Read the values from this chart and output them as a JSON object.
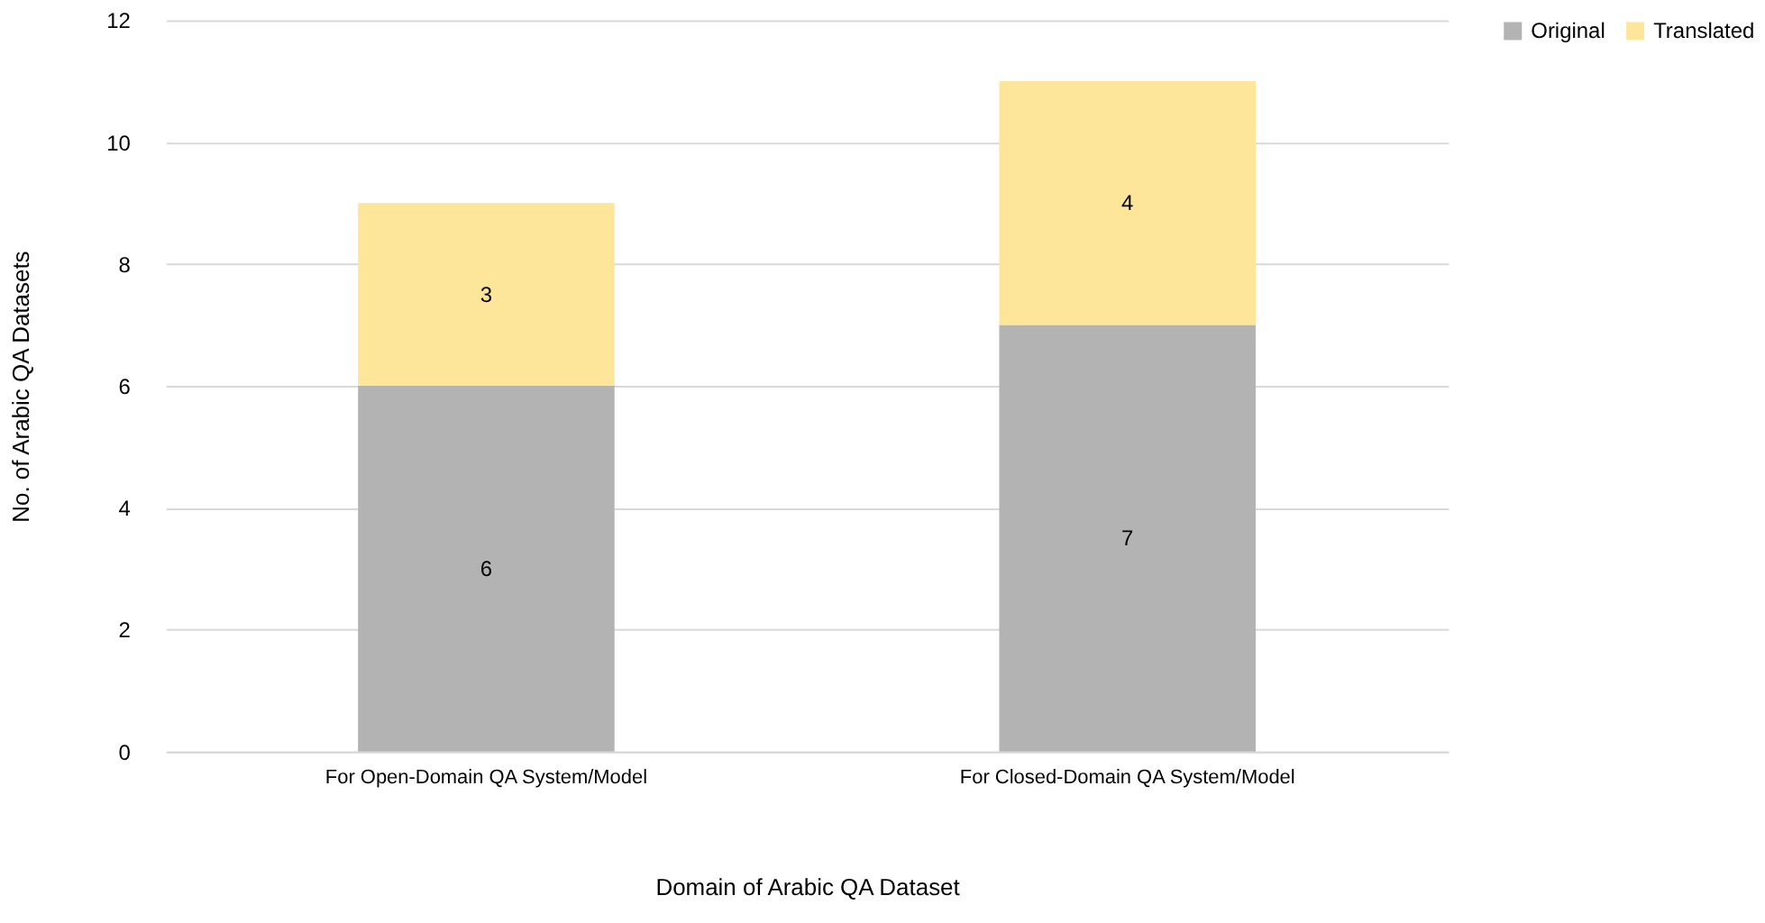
{
  "chart_data": {
    "type": "bar",
    "stacked": true,
    "xlabel": "Domain of Arabic QA Dataset",
    "ylabel": "No. of Arabic QA Datasets",
    "categories": [
      "For Open-Domain QA System/Model",
      "For Closed-Domain QA System/Model"
    ],
    "series": [
      {
        "name": "Original",
        "color": "#b3b3b3",
        "values": [
          6,
          7
        ]
      },
      {
        "name": "Translated",
        "color": "#fde59a",
        "values": [
          3,
          4
        ]
      }
    ],
    "ylim": [
      0,
      12
    ],
    "yticks": [
      0,
      2,
      4,
      6,
      8,
      10,
      12
    ],
    "grid": "y",
    "legend": "right",
    "data_labels": true
  }
}
